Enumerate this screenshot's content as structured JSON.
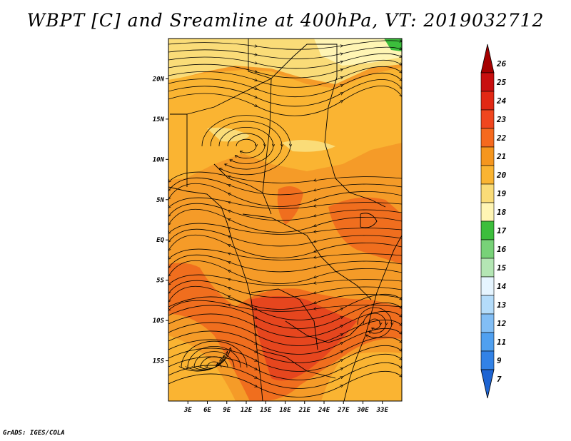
{
  "title": "WBPT [C] and Sreamline at 400hPa, VT: 2019032712",
  "credit": "GrADS: IGES/COLA",
  "map": {
    "lon_range": [
      0,
      36
    ],
    "lat_range": [
      -20,
      25
    ],
    "x_ticks": [
      {
        "lon": 3,
        "label": "3E"
      },
      {
        "lon": 6,
        "label": "6E"
      },
      {
        "lon": 9,
        "label": "9E"
      },
      {
        "lon": 12,
        "label": "12E"
      },
      {
        "lon": 15,
        "label": "15E"
      },
      {
        "lon": 18,
        "label": "18E"
      },
      {
        "lon": 21,
        "label": "21E"
      },
      {
        "lon": 24,
        "label": "24E"
      },
      {
        "lon": 27,
        "label": "27E"
      },
      {
        "lon": 30,
        "label": "30E"
      },
      {
        "lon": 33,
        "label": "33E"
      }
    ],
    "y_ticks": [
      {
        "lat": 20,
        "label": "20N"
      },
      {
        "lat": 15,
        "label": "15N"
      },
      {
        "lat": 10,
        "label": "10N"
      },
      {
        "lat": 5,
        "label": "5N"
      },
      {
        "lat": 0,
        "label": "EQ"
      },
      {
        "lat": -5,
        "label": "5S"
      },
      {
        "lat": -10,
        "label": "10S"
      },
      {
        "lat": -15,
        "label": "15S"
      }
    ]
  },
  "colorbar": {
    "levels": [
      "26",
      "25",
      "24",
      "23",
      "22",
      "21",
      "20",
      "19",
      "18",
      "17",
      "16",
      "15",
      "14",
      "13",
      "12",
      "11",
      "9",
      "7"
    ],
    "colors": [
      "#a50000",
      "#c80f0f",
      "#e12814",
      "#f0461e",
      "#f5691e",
      "#f5961e",
      "#fab432",
      "#fadc78",
      "#fff5b4",
      "#3cbe3c",
      "#78d278",
      "#b4e6b4",
      "#e6f5ff",
      "#b4dcfa",
      "#82bef5",
      "#50a0f0",
      "#3282e6",
      "#1e64d2"
    ]
  },
  "colors": {
    "c19": "#fadc78",
    "c20": "#fab432",
    "c21": "#f59b28",
    "c22": "#f06e1e",
    "c23": "#e6461e",
    "c18": "#fff5b4",
    "c17": "#3cbe3c"
  }
}
